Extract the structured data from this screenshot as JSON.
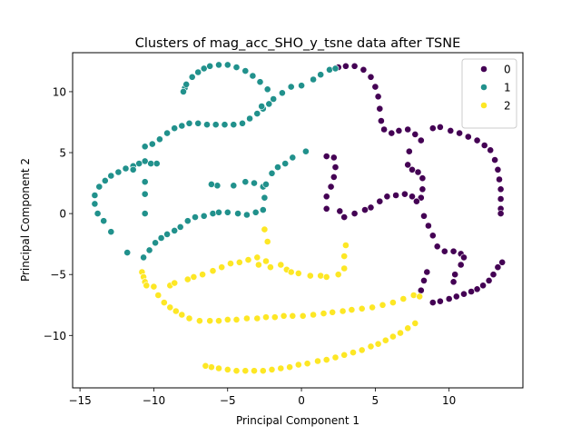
{
  "chart_data": {
    "type": "scatter",
    "title": "Clusters of mag_acc_SHO_y_tsne data after TSNE",
    "xlabel": "Principal Component 1",
    "ylabel": "Principal Component 2",
    "xlim": [
      -15.5,
      15
    ],
    "ylim": [
      -14.3,
      13.2
    ],
    "xticks": [
      -15,
      -10,
      -5,
      0,
      5,
      10
    ],
    "yticks": [
      -10,
      -5,
      0,
      5,
      10
    ],
    "grid": false,
    "legend": "top-right",
    "series": [
      {
        "name": "0",
        "color": "#440154",
        "points": [
          [
            2.5,
            12.0
          ],
          [
            3.0,
            12.1
          ],
          [
            3.6,
            12.1
          ],
          [
            4.2,
            11.8
          ],
          [
            4.7,
            11.2
          ],
          [
            5.0,
            10.4
          ],
          [
            5.2,
            9.6
          ],
          [
            5.3,
            8.6
          ],
          [
            5.4,
            7.6
          ],
          [
            5.6,
            6.9
          ],
          [
            6.1,
            6.6
          ],
          [
            6.6,
            6.8
          ],
          [
            7.2,
            6.9
          ],
          [
            7.7,
            6.5
          ],
          [
            8.1,
            6.0
          ],
          [
            8.9,
            7.0
          ],
          [
            9.4,
            7.1
          ],
          [
            10.1,
            6.8
          ],
          [
            10.7,
            6.6
          ],
          [
            11.3,
            6.3
          ],
          [
            11.9,
            6.0
          ],
          [
            12.4,
            5.6
          ],
          [
            12.8,
            5.2
          ],
          [
            13.1,
            4.4
          ],
          [
            13.3,
            3.6
          ],
          [
            13.4,
            2.8
          ],
          [
            13.5,
            2.0
          ],
          [
            13.5,
            1.2
          ],
          [
            13.5,
            0.4
          ],
          [
            13.5,
            0.0
          ],
          [
            7.3,
            5.1
          ],
          [
            7.2,
            4.0
          ],
          [
            7.5,
            3.6
          ],
          [
            7.9,
            3.4
          ],
          [
            8.2,
            2.9
          ],
          [
            8.2,
            2.0
          ],
          [
            8.1,
            1.3
          ],
          [
            7.8,
            1.0
          ],
          [
            7.5,
            1.4
          ],
          [
            7.0,
            1.6
          ],
          [
            6.4,
            1.5
          ],
          [
            5.8,
            1.4
          ],
          [
            5.3,
            1.0
          ],
          [
            4.7,
            0.5
          ],
          [
            4.3,
            0.3
          ],
          [
            3.6,
            0.0
          ],
          [
            2.9,
            -0.3
          ],
          [
            2.6,
            0.2
          ],
          [
            1.7,
            4.7
          ],
          [
            2.2,
            4.6
          ],
          [
            2.3,
            3.8
          ],
          [
            2.2,
            3.0
          ],
          [
            2.0,
            2.2
          ],
          [
            1.7,
            1.4
          ],
          [
            1.7,
            0.4
          ],
          [
            8.3,
            -0.2
          ],
          [
            8.6,
            -1.0
          ],
          [
            8.9,
            -1.8
          ],
          [
            9.2,
            -2.7
          ],
          [
            9.7,
            -3.1
          ],
          [
            10.3,
            -3.1
          ],
          [
            10.8,
            -3.3
          ],
          [
            11.0,
            -3.6
          ],
          [
            10.8,
            -4.2
          ],
          [
            10.4,
            -5.0
          ],
          [
            10.3,
            -5.6
          ],
          [
            8.5,
            -4.8
          ],
          [
            8.3,
            -5.5
          ],
          [
            8.1,
            -6.3
          ],
          [
            8.9,
            -7.3
          ],
          [
            9.4,
            -7.2
          ],
          [
            10.0,
            -7.0
          ],
          [
            10.5,
            -6.8
          ],
          [
            11.0,
            -6.6
          ],
          [
            11.5,
            -6.4
          ],
          [
            11.9,
            -6.2
          ],
          [
            12.3,
            -5.9
          ],
          [
            12.7,
            -5.5
          ],
          [
            13.0,
            -5.0
          ],
          [
            13.3,
            -4.4
          ],
          [
            13.6,
            -4.0
          ]
        ]
      },
      {
        "name": "1",
        "color": "#21918c",
        "points": [
          [
            -7.9,
            10.3
          ],
          [
            -8.0,
            10.0
          ],
          [
            -7.8,
            10.6
          ],
          [
            -7.4,
            11.2
          ],
          [
            -7.0,
            11.6
          ],
          [
            -6.6,
            11.9
          ],
          [
            -6.2,
            12.1
          ],
          [
            -5.6,
            12.2
          ],
          [
            -5.0,
            12.2
          ],
          [
            -4.4,
            12.0
          ],
          [
            -3.8,
            11.7
          ],
          [
            -3.3,
            11.3
          ],
          [
            -2.8,
            10.8
          ],
          [
            -2.3,
            10.2
          ],
          [
            -2.2,
            9.0
          ],
          [
            -2.6,
            8.6
          ],
          [
            -3.0,
            8.2
          ],
          [
            -3.5,
            7.8
          ],
          [
            -4.0,
            7.4
          ],
          [
            -4.6,
            7.3
          ],
          [
            -5.2,
            7.3
          ],
          [
            -5.8,
            7.3
          ],
          [
            -6.4,
            7.3
          ],
          [
            -7.0,
            7.4
          ],
          [
            -7.6,
            7.4
          ],
          [
            -8.1,
            7.2
          ],
          [
            -8.6,
            7.0
          ],
          [
            -9.1,
            6.6
          ],
          [
            -9.6,
            6.1
          ],
          [
            -10.1,
            5.7
          ],
          [
            -10.6,
            5.5
          ],
          [
            -10.6,
            4.3
          ],
          [
            -11.0,
            4.1
          ],
          [
            -11.4,
            3.9
          ],
          [
            -11.9,
            3.7
          ],
          [
            -12.4,
            3.4
          ],
          [
            -12.9,
            3.1
          ],
          [
            -13.3,
            2.7
          ],
          [
            -13.7,
            2.2
          ],
          [
            -14.0,
            1.5
          ],
          [
            -14.0,
            0.8
          ],
          [
            -13.8,
            0.0
          ],
          [
            -13.4,
            -0.6
          ],
          [
            -12.9,
            -1.5
          ],
          [
            -11.8,
            -3.2
          ],
          [
            -10.7,
            -3.6
          ],
          [
            -10.3,
            -3.0
          ],
          [
            -9.9,
            -2.4
          ],
          [
            -9.5,
            -2.0
          ],
          [
            -9.1,
            -1.7
          ],
          [
            -8.6,
            -1.4
          ],
          [
            -8.2,
            -1.1
          ],
          [
            -7.7,
            -0.6
          ],
          [
            -7.2,
            -0.3
          ],
          [
            -6.6,
            -0.2
          ],
          [
            -6.0,
            0.0
          ],
          [
            -5.6,
            0.1
          ],
          [
            -5.0,
            0.1
          ],
          [
            -4.3,
            0.0
          ],
          [
            -3.7,
            -0.1
          ],
          [
            -3.1,
            0.1
          ],
          [
            -2.6,
            0.3
          ],
          [
            -2.5,
            1.3
          ],
          [
            -2.6,
            2.2
          ],
          [
            -3.2,
            2.5
          ],
          [
            -3.8,
            2.6
          ],
          [
            -4.6,
            2.3
          ],
          [
            -5.7,
            2.3
          ],
          [
            -6.1,
            2.4
          ],
          [
            -2.4,
            2.4
          ],
          [
            -2.0,
            3.3
          ],
          [
            -1.6,
            3.8
          ],
          [
            -1.1,
            4.1
          ],
          [
            -0.6,
            4.6
          ],
          [
            0.3,
            5.1
          ],
          [
            -10.6,
            2.6
          ],
          [
            -10.6,
            1.6
          ],
          [
            -10.6,
            0.0
          ],
          [
            -11.4,
            3.6
          ],
          [
            -10.2,
            4.1
          ],
          [
            -9.8,
            4.1
          ],
          [
            -2.7,
            8.8
          ],
          [
            -1.9,
            9.4
          ],
          [
            -1.3,
            9.9
          ],
          [
            -0.7,
            10.4
          ],
          [
            0.0,
            10.5
          ],
          [
            0.8,
            11.0
          ],
          [
            1.3,
            11.4
          ],
          [
            1.9,
            11.8
          ],
          [
            2.3,
            11.9
          ]
        ]
      },
      {
        "name": "2",
        "color": "#fde725",
        "points": [
          [
            -10.8,
            -4.8
          ],
          [
            -10.7,
            -5.2
          ],
          [
            -10.6,
            -5.6
          ],
          [
            -10.5,
            -5.9
          ],
          [
            -10.0,
            -6.0
          ],
          [
            -9.7,
            -6.7
          ],
          [
            -8.9,
            -5.9
          ],
          [
            -8.6,
            -5.7
          ],
          [
            -7.7,
            -5.4
          ],
          [
            -7.3,
            -5.2
          ],
          [
            -6.7,
            -5.0
          ],
          [
            -6.0,
            -4.7
          ],
          [
            -5.4,
            -4.4
          ],
          [
            -4.8,
            -4.1
          ],
          [
            -4.2,
            -4.0
          ],
          [
            -3.6,
            -3.8
          ],
          [
            -3.0,
            -3.6
          ],
          [
            -2.4,
            -3.9
          ],
          [
            -2.1,
            -4.4
          ],
          [
            -2.9,
            -4.2
          ],
          [
            -2.3,
            -2.3
          ],
          [
            -2.5,
            -1.3
          ],
          [
            -1.4,
            -4.2
          ],
          [
            -1.0,
            -4.6
          ],
          [
            -0.7,
            -4.8
          ],
          [
            -0.2,
            -4.9
          ],
          [
            0.6,
            -5.1
          ],
          [
            1.3,
            -5.1
          ],
          [
            1.7,
            -5.2
          ],
          [
            2.5,
            -5.0
          ],
          [
            2.9,
            -4.5
          ],
          [
            2.9,
            -3.5
          ],
          [
            3.0,
            -2.6
          ],
          [
            -9.3,
            -7.3
          ],
          [
            -8.9,
            -7.7
          ],
          [
            -8.5,
            -8.0
          ],
          [
            -8.1,
            -8.3
          ],
          [
            -7.6,
            -8.6
          ],
          [
            -6.9,
            -8.8
          ],
          [
            -6.2,
            -8.8
          ],
          [
            -5.6,
            -8.8
          ],
          [
            -5.0,
            -8.7
          ],
          [
            -4.4,
            -8.7
          ],
          [
            -3.7,
            -8.6
          ],
          [
            -3.0,
            -8.6
          ],
          [
            -2.4,
            -8.5
          ],
          [
            -1.8,
            -8.5
          ],
          [
            -1.2,
            -8.4
          ],
          [
            -0.6,
            -8.4
          ],
          [
            0.1,
            -8.4
          ],
          [
            0.8,
            -8.3
          ],
          [
            1.5,
            -8.2
          ],
          [
            2.1,
            -8.1
          ],
          [
            2.8,
            -8.0
          ],
          [
            3.4,
            -7.9
          ],
          [
            4.1,
            -7.8
          ],
          [
            4.8,
            -7.7
          ],
          [
            5.5,
            -7.5
          ],
          [
            6.2,
            -7.3
          ],
          [
            6.9,
            -7.0
          ],
          [
            7.6,
            -6.7
          ],
          [
            8.0,
            -6.8
          ],
          [
            7.7,
            -9.0
          ],
          [
            7.2,
            -9.4
          ],
          [
            6.7,
            -9.8
          ],
          [
            6.2,
            -10.1
          ],
          [
            5.7,
            -10.4
          ],
          [
            5.2,
            -10.7
          ],
          [
            4.7,
            -10.9
          ],
          [
            4.1,
            -11.2
          ],
          [
            3.5,
            -11.4
          ],
          [
            2.9,
            -11.6
          ],
          [
            2.3,
            -11.8
          ],
          [
            1.7,
            -12.0
          ],
          [
            1.1,
            -12.1
          ],
          [
            0.4,
            -12.3
          ],
          [
            -0.2,
            -12.4
          ],
          [
            -0.8,
            -12.6
          ],
          [
            -1.4,
            -12.7
          ],
          [
            -2.0,
            -12.8
          ],
          [
            -2.6,
            -12.9
          ],
          [
            -3.2,
            -12.9
          ],
          [
            -3.8,
            -12.9
          ],
          [
            -4.4,
            -12.9
          ],
          [
            -5.0,
            -12.8
          ],
          [
            -5.6,
            -12.7
          ],
          [
            -6.1,
            -12.6
          ],
          [
            -6.5,
            -12.5
          ]
        ]
      }
    ]
  }
}
